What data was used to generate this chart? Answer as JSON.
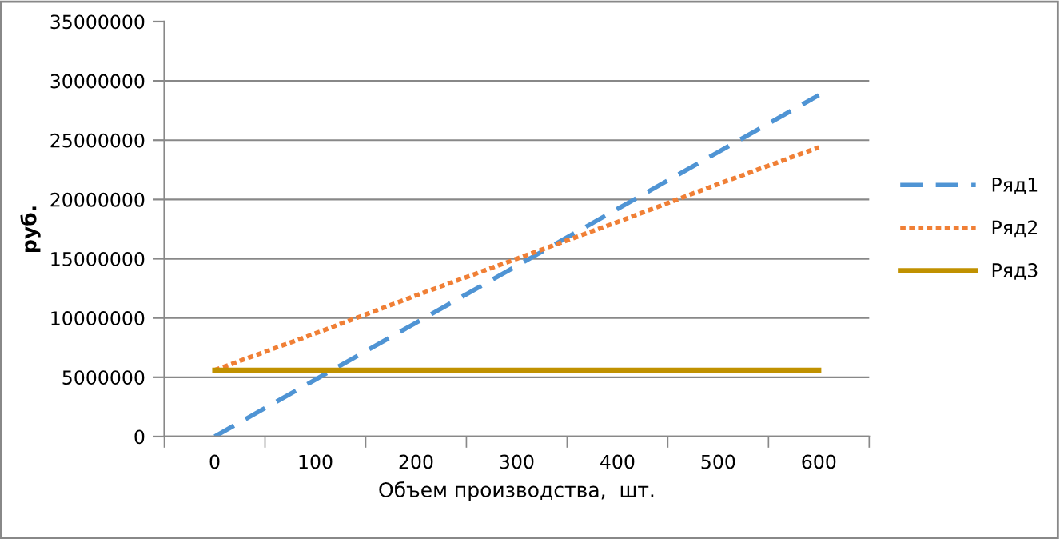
{
  "chart_data": {
    "type": "line",
    "xlabel": "Объем производства,  шт.",
    "ylabel": "руб.",
    "categories": [
      "0",
      "100",
      "200",
      "300",
      "400",
      "500",
      "600"
    ],
    "series": [
      {
        "name": "Ряд1",
        "color": "#4f94d4",
        "line_style": "dashed",
        "values": [
          0,
          4800000,
          9600000,
          14400000,
          19200000,
          24000000,
          28800000
        ]
      },
      {
        "name": "Ряд2",
        "color": "#f07f35",
        "line_style": "dotted",
        "values": [
          5600000,
          8700000,
          11900000,
          15000000,
          18100000,
          21300000,
          24400000
        ]
      },
      {
        "name": "Ряд3",
        "color": "#c09100",
        "line_style": "solid",
        "values": [
          5600000,
          5600000,
          5600000,
          5600000,
          5600000,
          5600000,
          5600000
        ]
      }
    ],
    "ylim": [
      0,
      35000000
    ],
    "yticks": [
      0,
      5000000,
      10000000,
      15000000,
      20000000,
      25000000,
      30000000,
      35000000
    ],
    "grid": "y",
    "legend": "right",
    "marker": "none"
  }
}
